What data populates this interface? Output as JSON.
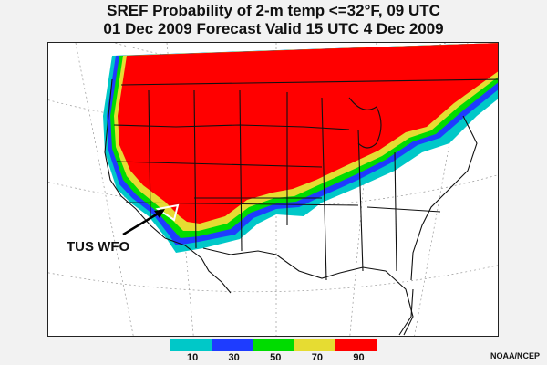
{
  "title": {
    "line1": "SREF Probability of 2-m temp <=32°F, 09 UTC",
    "line2": "01 Dec 2009 Forecast Valid 15 UTC 4 Dec 2009"
  },
  "annotation": {
    "label": "TUS WFO"
  },
  "legend": {
    "ticks": [
      "10",
      "30",
      "50",
      "70",
      "90"
    ],
    "colors": [
      "#00c8c8",
      "#1e3cff",
      "#00dc00",
      "#e6dc32",
      "#ff0000"
    ]
  },
  "credit": "NOAA/NCEP",
  "colors": {
    "p10": "#00c8c8",
    "p30": "#1e3cff",
    "p50": "#00dc00",
    "p70": "#e6dc32",
    "p90": "#ff0000",
    "land": "#ffffff",
    "background": "#f2f2f2"
  }
}
